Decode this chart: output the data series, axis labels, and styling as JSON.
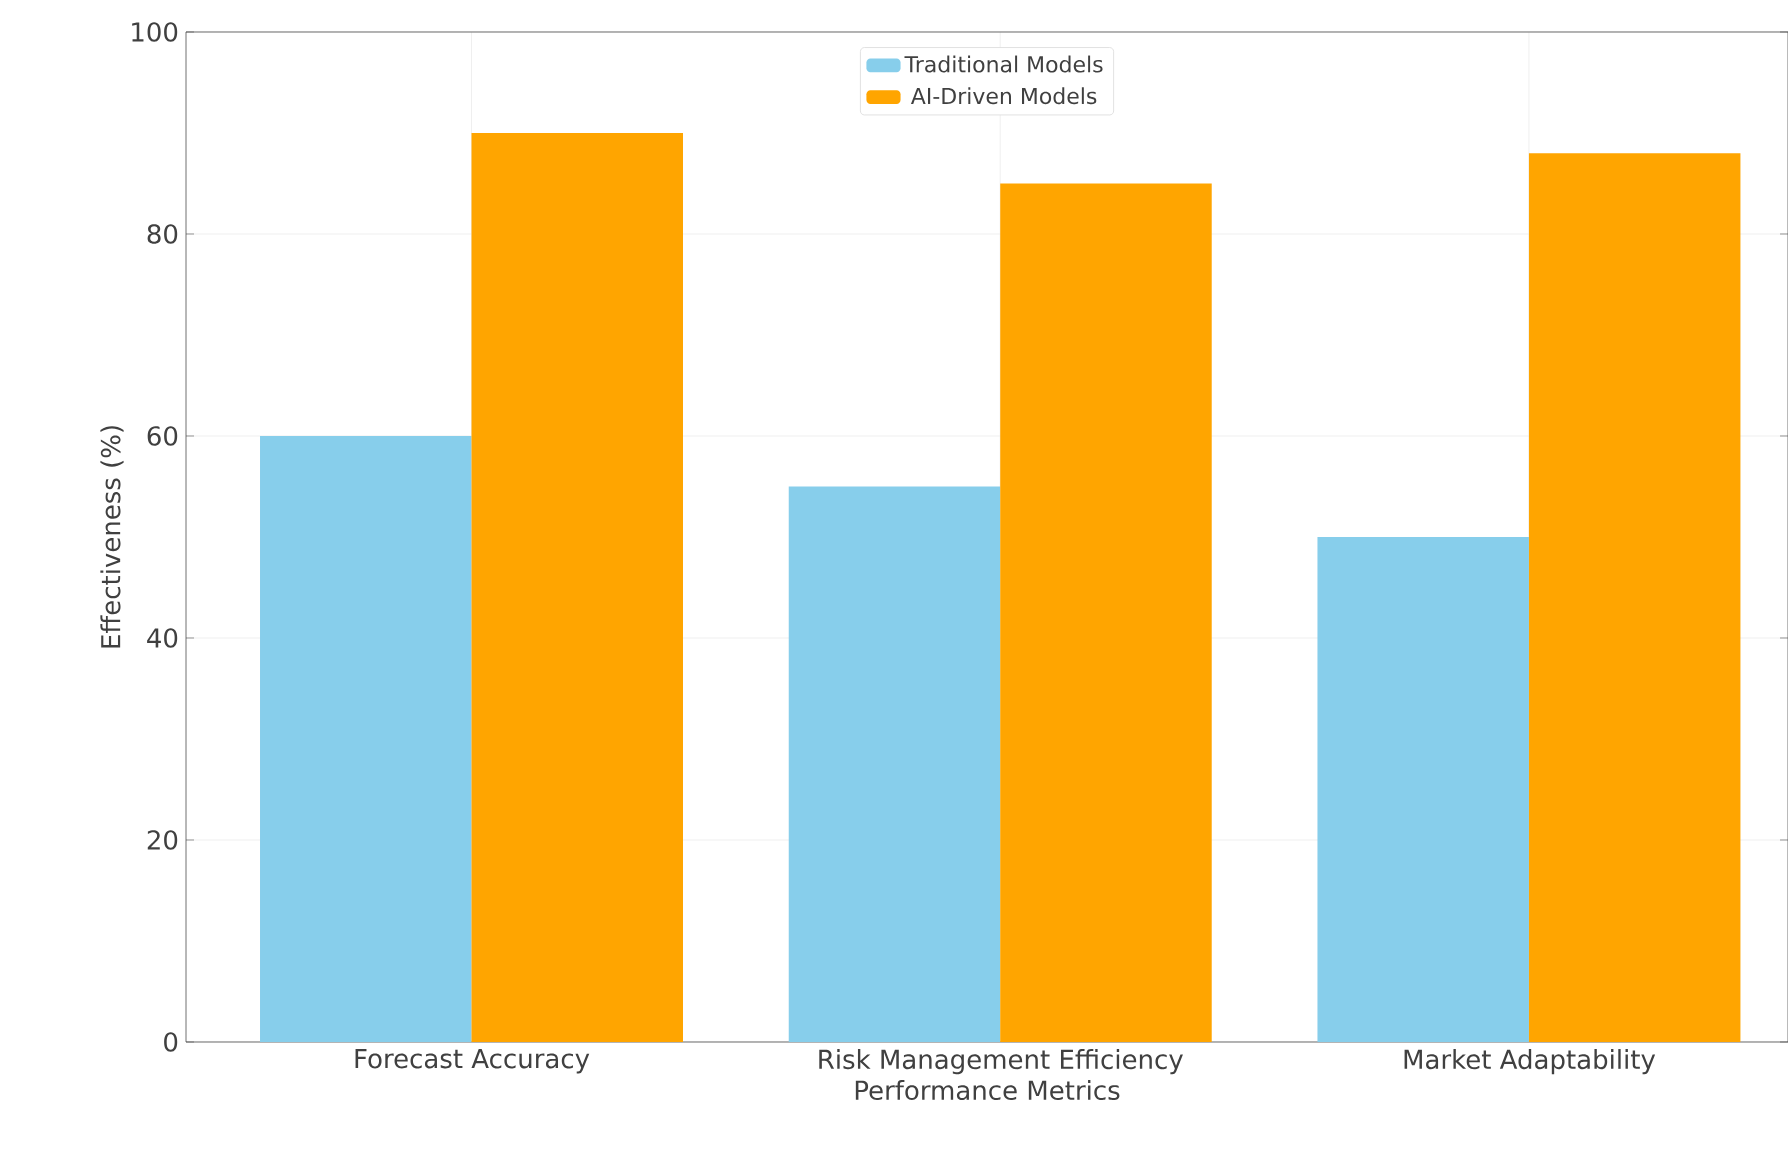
{
  "chart_data": {
    "type": "bar",
    "xlabel": "Performance Metrics",
    "ylabel": "Effectiveness (%)",
    "categories": [
      "Forecast Accuracy",
      "Risk Management Efficiency",
      "Market Adaptability"
    ],
    "series": [
      {
        "name": "Traditional Models",
        "color": "#87ceeb",
        "values": [
          60,
          55,
          50
        ]
      },
      {
        "name": "AI-Driven Models",
        "color": "#ffa500",
        "values": [
          90,
          85,
          88
        ]
      }
    ],
    "ylim": [
      0,
      100
    ],
    "yticks": [
      0,
      20,
      40,
      60,
      80,
      100
    ],
    "grid": true,
    "legend": "top"
  }
}
